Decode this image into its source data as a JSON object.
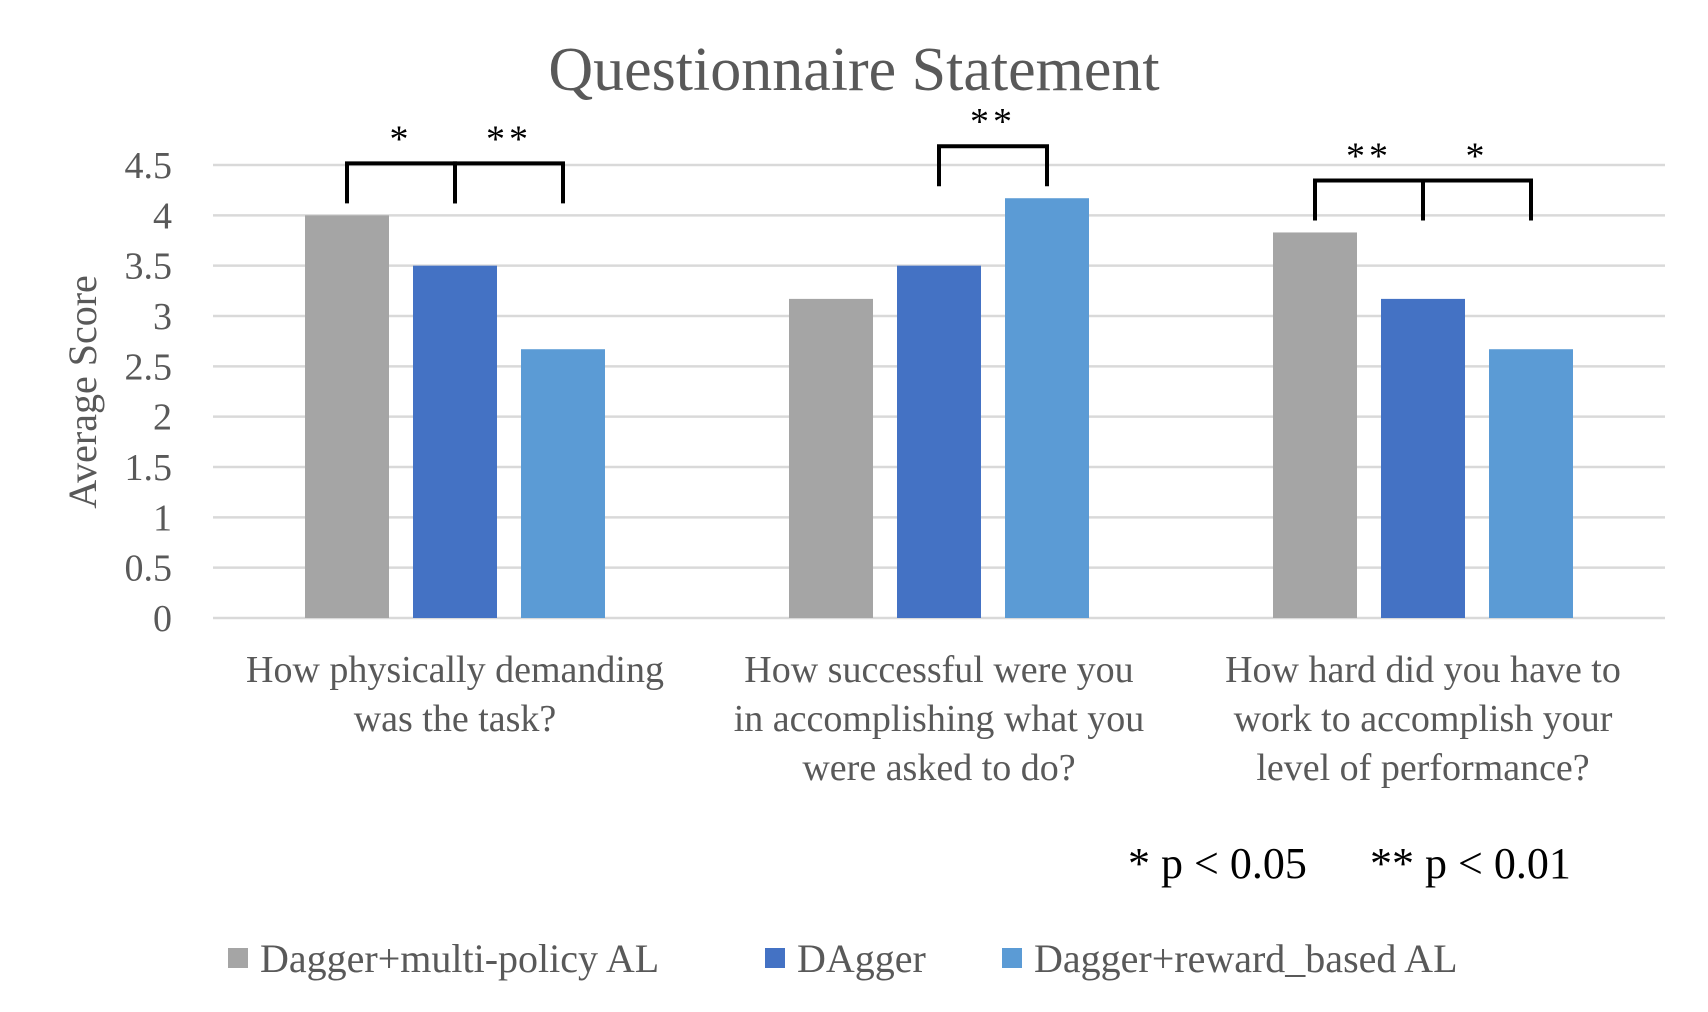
{
  "chart_data": {
    "type": "bar",
    "title": "Questionnaire Statement",
    "ylabel": "Average Score",
    "xlabel": "",
    "ylim": [
      0,
      4.5
    ],
    "yticks": [
      "0",
      "0.5",
      "1",
      "1.5",
      "2",
      "2.5",
      "3",
      "3.5",
      "4",
      "4.5"
    ],
    "grid": true,
    "legend_position": "bottom",
    "categories": [
      [
        "How physically demanding",
        "was the task?"
      ],
      [
        "How successful were you",
        "in accomplishing what you",
        "were asked to do?"
      ],
      [
        "How hard did you have to",
        "work to accomplish your",
        "level of performance?"
      ]
    ],
    "series": [
      {
        "name": "Dagger+multi-policy AL",
        "color": "#a5a5a5",
        "values": [
          4.0,
          3.17,
          3.83
        ]
      },
      {
        "name": "DAgger",
        "color": "#4472c4",
        "values": [
          3.5,
          3.5,
          3.17
        ]
      },
      {
        "name": "Dagger+reward_based AL",
        "color": "#5b9bd5",
        "values": [
          2.67,
          4.17,
          2.67
        ]
      }
    ],
    "significance": [
      {
        "category": 0,
        "from_series": 0,
        "to_series": 1,
        "label": "*"
      },
      {
        "category": 0,
        "from_series": 1,
        "to_series": 2,
        "label": "**"
      },
      {
        "category": 1,
        "from_series": 1,
        "to_series": 2,
        "label": "**"
      },
      {
        "category": 2,
        "from_series": 0,
        "to_series": 1,
        "label": "**"
      },
      {
        "category": 2,
        "from_series": 1,
        "to_series": 2,
        "label": "*"
      }
    ],
    "significance_note": [
      "* p < 0.05",
      "** p < 0.01"
    ]
  }
}
